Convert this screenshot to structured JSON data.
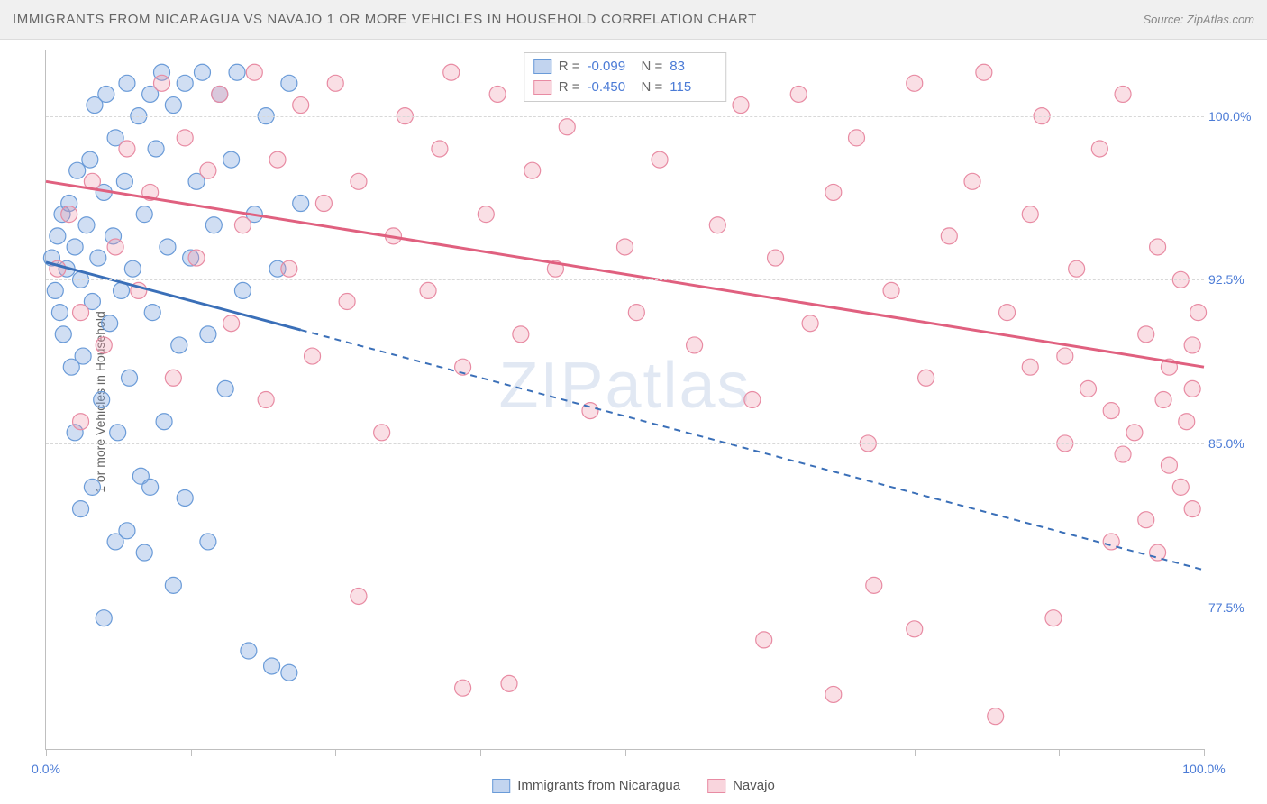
{
  "title": "IMMIGRANTS FROM NICARAGUA VS NAVAJO 1 OR MORE VEHICLES IN HOUSEHOLD CORRELATION CHART",
  "source": "Source: ZipAtlas.com",
  "watermark": "ZIPatlas",
  "y_axis_label": "1 or more Vehicles in Household",
  "chart": {
    "type": "scatter",
    "xlim": [
      0,
      100
    ],
    "ylim": [
      71,
      103
    ],
    "y_ticks": [
      77.5,
      85.0,
      92.5,
      100.0
    ],
    "y_tick_labels": [
      "77.5%",
      "85.0%",
      "92.5%",
      "100.0%"
    ],
    "x_ticks": [
      0,
      12.5,
      25,
      37.5,
      50,
      62.5,
      75,
      87.5,
      100
    ],
    "x_tick_labels_shown": {
      "0": "0.0%",
      "100": "100.0%"
    },
    "background_color": "#ffffff",
    "grid_color": "#d8d8d8",
    "series": [
      {
        "name": "Immigrants from Nicaragua",
        "color_fill": "rgba(120,160,220,0.35)",
        "color_stroke": "#6a9bd8",
        "line_color": "#3a6fb8",
        "marker_radius": 9,
        "R": "-0.099",
        "N": "83",
        "regression": {
          "x1": 0,
          "y1": 93.3,
          "x2": 100,
          "y2": 79.2,
          "solid_until_x": 22
        },
        "points": [
          [
            0.5,
            93.5
          ],
          [
            0.8,
            92.0
          ],
          [
            1.0,
            94.5
          ],
          [
            1.2,
            91.0
          ],
          [
            1.4,
            95.5
          ],
          [
            1.5,
            90.0
          ],
          [
            1.8,
            93.0
          ],
          [
            2.0,
            96.0
          ],
          [
            2.2,
            88.5
          ],
          [
            2.5,
            94.0
          ],
          [
            2.7,
            97.5
          ],
          [
            3.0,
            92.5
          ],
          [
            3.2,
            89.0
          ],
          [
            3.5,
            95.0
          ],
          [
            3.8,
            98.0
          ],
          [
            4.0,
            91.5
          ],
          [
            4.2,
            100.5
          ],
          [
            4.5,
            93.5
          ],
          [
            4.8,
            87.0
          ],
          [
            5.0,
            96.5
          ],
          [
            5.2,
            101.0
          ],
          [
            5.5,
            90.5
          ],
          [
            5.8,
            94.5
          ],
          [
            6.0,
            99.0
          ],
          [
            6.2,
            85.5
          ],
          [
            6.5,
            92.0
          ],
          [
            6.8,
            97.0
          ],
          [
            7.0,
            101.5
          ],
          [
            7.2,
            88.0
          ],
          [
            7.5,
            93.0
          ],
          [
            8.0,
            100.0
          ],
          [
            8.2,
            83.5
          ],
          [
            8.5,
            95.5
          ],
          [
            9.0,
            101.0
          ],
          [
            9.2,
            91.0
          ],
          [
            9.5,
            98.5
          ],
          [
            10.0,
            102.0
          ],
          [
            10.2,
            86.0
          ],
          [
            10.5,
            94.0
          ],
          [
            11.0,
            100.5
          ],
          [
            11.5,
            89.5
          ],
          [
            12.0,
            101.5
          ],
          [
            12.5,
            93.5
          ],
          [
            13.0,
            97.0
          ],
          [
            13.5,
            102.0
          ],
          [
            14.0,
            90.0
          ],
          [
            14.5,
            95.0
          ],
          [
            15.0,
            101.0
          ],
          [
            15.5,
            87.5
          ],
          [
            16.0,
            98.0
          ],
          [
            16.5,
            102.0
          ],
          [
            17.0,
            92.0
          ],
          [
            18.0,
            95.5
          ],
          [
            19.0,
            100.0
          ],
          [
            20.0,
            93.0
          ],
          [
            21.0,
            101.5
          ],
          [
            22.0,
            96.0
          ],
          [
            2.5,
            85.5
          ],
          [
            3.0,
            82.0
          ],
          [
            4.0,
            83.0
          ],
          [
            5.0,
            77.0
          ],
          [
            7.0,
            81.0
          ],
          [
            8.5,
            80.0
          ],
          [
            11.0,
            78.5
          ],
          [
            14.0,
            80.5
          ],
          [
            17.5,
            75.5
          ],
          [
            19.5,
            74.8
          ],
          [
            21.0,
            74.5
          ],
          [
            9.0,
            83.0
          ],
          [
            6.0,
            80.5
          ],
          [
            12.0,
            82.5
          ]
        ]
      },
      {
        "name": "Navajo",
        "color_fill": "rgba(240,150,170,0.30)",
        "color_stroke": "#e88ba3",
        "line_color": "#e0607f",
        "marker_radius": 9,
        "R": "-0.450",
        "N": "115",
        "regression": {
          "x1": 0,
          "y1": 97.0,
          "x2": 100,
          "y2": 88.5,
          "solid_until_x": 100
        },
        "points": [
          [
            1.0,
            93.0
          ],
          [
            2.0,
            95.5
          ],
          [
            3.0,
            91.0
          ],
          [
            4.0,
            97.0
          ],
          [
            5.0,
            89.5
          ],
          [
            6.0,
            94.0
          ],
          [
            7.0,
            98.5
          ],
          [
            8.0,
            92.0
          ],
          [
            9.0,
            96.5
          ],
          [
            10.0,
            101.5
          ],
          [
            11.0,
            88.0
          ],
          [
            12.0,
            99.0
          ],
          [
            13.0,
            93.5
          ],
          [
            14.0,
            97.5
          ],
          [
            15.0,
            101.0
          ],
          [
            16.0,
            90.5
          ],
          [
            17.0,
            95.0
          ],
          [
            18.0,
            102.0
          ],
          [
            19.0,
            87.0
          ],
          [
            20.0,
            98.0
          ],
          [
            21.0,
            93.0
          ],
          [
            22.0,
            100.5
          ],
          [
            23.0,
            89.0
          ],
          [
            24.0,
            96.0
          ],
          [
            25.0,
            101.5
          ],
          [
            26.0,
            91.5
          ],
          [
            27.0,
            97.0
          ],
          [
            29.0,
            85.5
          ],
          [
            30.0,
            94.5
          ],
          [
            31.0,
            100.0
          ],
          [
            33.0,
            92.0
          ],
          [
            34.0,
            98.5
          ],
          [
            35.0,
            102.0
          ],
          [
            36.0,
            88.5
          ],
          [
            38.0,
            95.5
          ],
          [
            39.0,
            101.0
          ],
          [
            41.0,
            90.0
          ],
          [
            42.0,
            97.5
          ],
          [
            44.0,
            93.0
          ],
          [
            45.0,
            99.5
          ],
          [
            47.0,
            86.5
          ],
          [
            48.0,
            101.5
          ],
          [
            50.0,
            94.0
          ],
          [
            51.0,
            91.0
          ],
          [
            53.0,
            98.0
          ],
          [
            55.0,
            102.0
          ],
          [
            56.0,
            89.5
          ],
          [
            58.0,
            95.0
          ],
          [
            60.0,
            100.5
          ],
          [
            61.0,
            87.0
          ],
          [
            63.0,
            93.5
          ],
          [
            65.0,
            101.0
          ],
          [
            66.0,
            90.5
          ],
          [
            68.0,
            96.5
          ],
          [
            70.0,
            99.0
          ],
          [
            71.0,
            85.0
          ],
          [
            73.0,
            92.0
          ],
          [
            75.0,
            101.5
          ],
          [
            76.0,
            88.0
          ],
          [
            78.0,
            94.5
          ],
          [
            80.0,
            97.0
          ],
          [
            81.0,
            102.0
          ],
          [
            83.0,
            91.0
          ],
          [
            85.0,
            95.5
          ],
          [
            86.0,
            100.0
          ],
          [
            88.0,
            89.0
          ],
          [
            89.0,
            93.0
          ],
          [
            91.0,
            98.5
          ],
          [
            92.0,
            86.5
          ],
          [
            93.0,
            101.0
          ],
          [
            95.0,
            90.0
          ],
          [
            96.0,
            94.0
          ],
          [
            97.0,
            88.5
          ],
          [
            98.0,
            92.5
          ],
          [
            99.0,
            89.5
          ],
          [
            99.5,
            91.0
          ],
          [
            3.0,
            86.0
          ],
          [
            27.0,
            78.0
          ],
          [
            36.0,
            73.8
          ],
          [
            40.0,
            74.0
          ],
          [
            62.0,
            76.0
          ],
          [
            68.0,
            73.5
          ],
          [
            71.5,
            78.5
          ],
          [
            75.0,
            76.5
          ],
          [
            82.0,
            72.5
          ],
          [
            87.0,
            77.0
          ],
          [
            92.0,
            80.5
          ],
          [
            95.0,
            81.5
          ],
          [
            96.0,
            80.0
          ],
          [
            97.0,
            84.0
          ],
          [
            98.0,
            83.0
          ],
          [
            99.0,
            82.0
          ],
          [
            94.0,
            85.5
          ],
          [
            96.5,
            87.0
          ],
          [
            98.5,
            86.0
          ],
          [
            93.0,
            84.5
          ],
          [
            90.0,
            87.5
          ],
          [
            88.0,
            85.0
          ],
          [
            85.0,
            88.5
          ],
          [
            99.0,
            87.5
          ]
        ]
      }
    ]
  },
  "legend_bottom": [
    {
      "label": "Immigrants from Nicaragua",
      "fill": "rgba(120,160,220,0.45)",
      "stroke": "#6a9bd8"
    },
    {
      "label": "Navajo",
      "fill": "rgba(240,150,170,0.40)",
      "stroke": "#e88ba3"
    }
  ]
}
